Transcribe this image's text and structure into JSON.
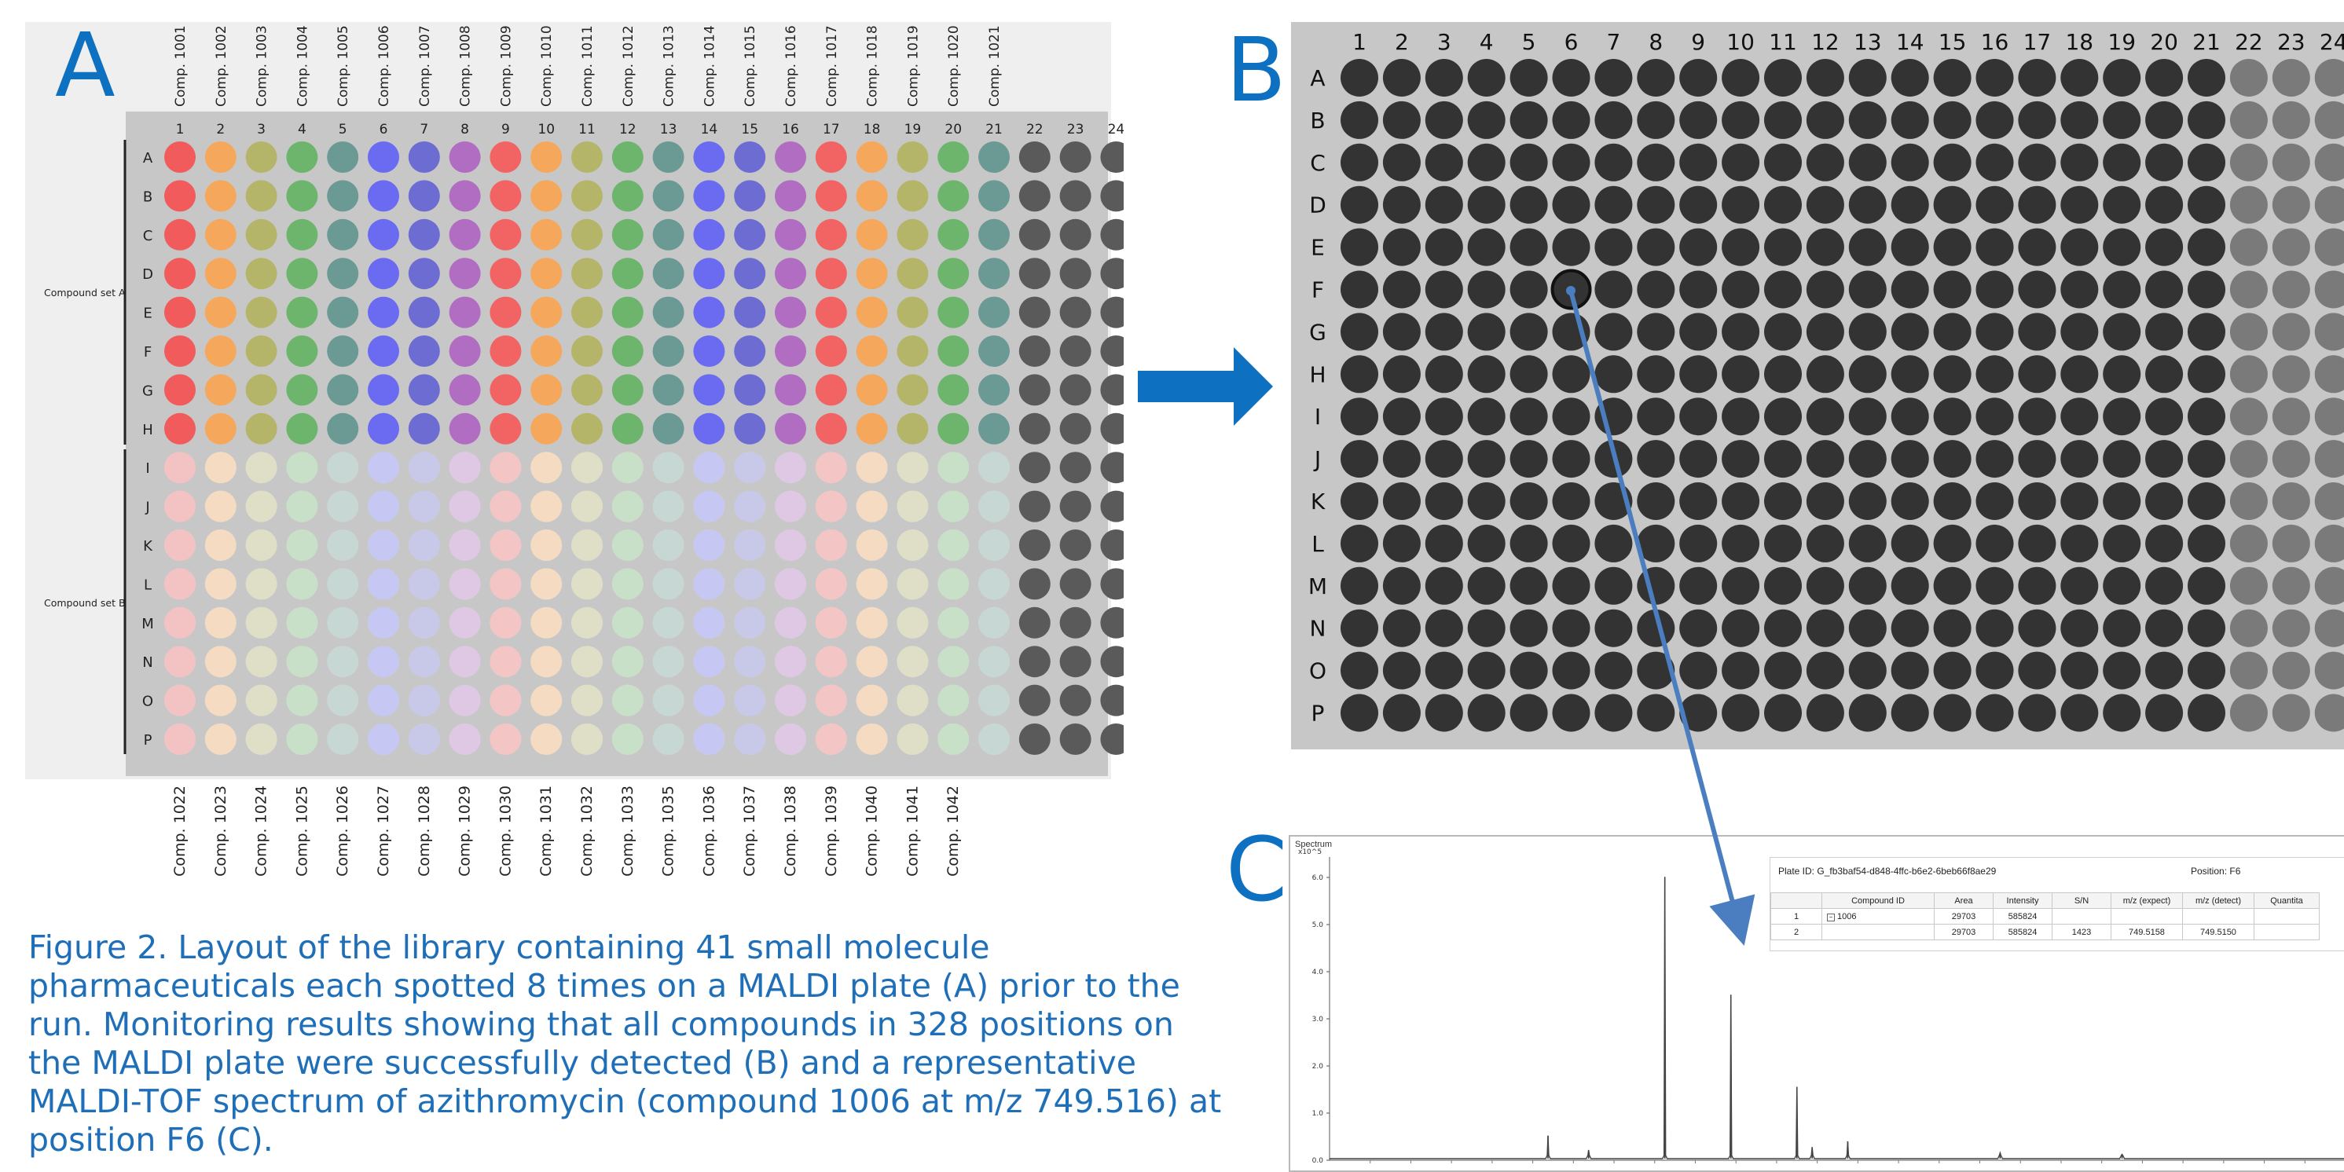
{
  "panels": {
    "a": "A",
    "b": "B",
    "c": "C"
  },
  "plate": {
    "columns": [
      "1",
      "2",
      "3",
      "4",
      "5",
      "6",
      "7",
      "8",
      "9",
      "10",
      "11",
      "12",
      "13",
      "14",
      "15",
      "16",
      "17",
      "18",
      "19",
      "20",
      "21",
      "22",
      "23",
      "24"
    ],
    "rows": [
      "A",
      "B",
      "C",
      "D",
      "E",
      "F",
      "G",
      "H",
      "I",
      "J",
      "K",
      "L",
      "M",
      "N",
      "O",
      "P"
    ]
  },
  "plate_a": {
    "top_compounds": [
      "Comp. 1001",
      "Comp. 1002",
      "Comp. 1003",
      "Comp. 1004",
      "Comp. 1005",
      "Comp. 1006",
      "Comp. 1007",
      "Comp. 1008",
      "Comp. 1009",
      "Comp. 1010",
      "Comp. 1011",
      "Comp. 1012",
      "Comp. 1013",
      "Comp. 1014",
      "Comp. 1015",
      "Comp. 1016",
      "Comp. 1017",
      "Comp. 1018",
      "Comp. 1019",
      "Comp. 1020",
      "Comp. 1021"
    ],
    "bottom_compounds": [
      "Comp. 1022",
      "Comp. 1023",
      "Comp. 1024",
      "Comp. 1025",
      "Comp. 1026",
      "Comp. 1027",
      "Comp. 1028",
      "Comp. 1029",
      "Comp. 1030",
      "Comp. 1031",
      "Comp. 1032",
      "Comp. 1033",
      "Comp. 1035",
      "Comp. 1036",
      "Comp. 1037",
      "Comp. 1038",
      "Comp. 1039",
      "Comp. 1040",
      "Comp. 1041",
      "Comp. 1042"
    ],
    "set_a_label": "Compound set A",
    "set_b_label": "Compound set B",
    "column_colors": [
      "#F25B5B",
      "#F5A85B",
      "#B5B56A",
      "#6DB56D",
      "#6A9A93",
      "#6B6BF2",
      "#6C6CD3",
      "#B06DC2",
      "#F26363",
      "#F5A85B",
      "#B5B56A",
      "#6DB56D",
      "#6A9A93",
      "#6B6BF2",
      "#6C6CD3",
      "#B06DC2",
      "#F26363",
      "#F5A85B",
      "#B5B56A",
      "#6DB56D",
      "#6A9A93"
    ],
    "set_a_rows": 8,
    "faded_opacity": 0.32,
    "empty_well_color": "#5a5a5a",
    "plate_background": "#c7c7c7",
    "outer_background": "#efefef"
  },
  "plate_b": {
    "plate_background": "#c7c7c7",
    "detected_well_color": "#333333",
    "empty_well_color": "#7a7a7a",
    "selected_well": "F6"
  },
  "spectrum": {
    "panel_title": "Spectrum",
    "y_exponent": "x10^5",
    "y_ticks": [
      "6.0",
      "5.0",
      "4.0",
      "3.0",
      "2.0",
      "1.0",
      "0.0"
    ],
    "y_tick_values": [
      6.0,
      5.0,
      4.0,
      3.0,
      2.0,
      1.0,
      0.0
    ],
    "peaks": [
      {
        "x": 0.215,
        "h": 0.08
      },
      {
        "x": 0.255,
        "h": 0.03
      },
      {
        "x": 0.33,
        "h": 0.98
      },
      {
        "x": 0.395,
        "h": 0.57
      },
      {
        "x": 0.46,
        "h": 0.25
      },
      {
        "x": 0.475,
        "h": 0.04
      },
      {
        "x": 0.51,
        "h": 0.06
      },
      {
        "x": 0.66,
        "h": 0.02
      },
      {
        "x": 0.78,
        "h": 0.015
      }
    ],
    "plate_id": "Plate ID: G_fb3baf54-d848-4ffc-b6e2-6beb66f8ae29",
    "position": "Position: F6",
    "table": {
      "headers": [
        "",
        "Compound ID",
        "Area",
        "Intensity",
        "S/N",
        "m/z (expect)",
        "m/z (detect)",
        "Quantita"
      ],
      "rows": [
        [
          "1",
          "1006",
          "29703",
          "585824",
          "",
          "",
          "",
          ""
        ],
        [
          "2",
          "",
          "29703",
          "585824",
          "1423",
          "749.5158",
          "749.5150",
          ""
        ]
      ]
    }
  },
  "caption": "Figure 2. Layout of the library containing 41 small molecule pharmaceuticals each spotted 8 times on a MALDI plate (A) prior to the run. Monitoring results showing that all compounds in 328 positions on the MALDI plate were successfully detected (B) and a representative MALDI-TOF spectrum of azithromycin (compound 1006 at m/z 749.516) at position F6 (C).",
  "colors": {
    "accent_blue": "#0E70C0",
    "caption_blue": "#1F6FB8",
    "connector_blue": "#4A7EC0"
  }
}
